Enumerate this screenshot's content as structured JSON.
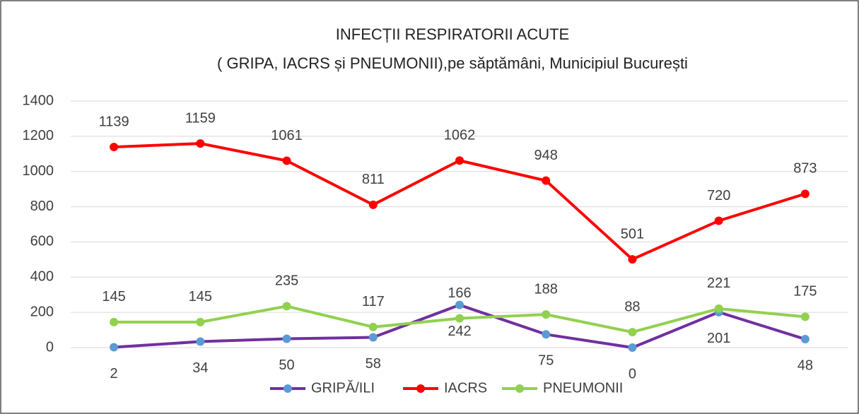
{
  "chart_data": {
    "type": "line",
    "title": "INFECȚII RESPIRATORII ACUTE",
    "subtitle": "( GRIPA, IACRS și PNEUMONII),pe săptămâni, Municipiul București",
    "categories": [
      null,
      null,
      null,
      null,
      null,
      null,
      null,
      null,
      null
    ],
    "series": [
      {
        "name": "GRIPĂ/ILI",
        "color": "#7030a0",
        "marker_color": "#5b9bd5",
        "label_position": "below",
        "values": [
          2,
          34,
          50,
          58,
          242,
          75,
          0,
          201,
          48
        ]
      },
      {
        "name": "IACRS",
        "color": "#ff0000",
        "marker_color": "#ff0000",
        "label_position": "above",
        "values": [
          1139,
          1159,
          1061,
          811,
          1062,
          948,
          501,
          720,
          873
        ]
      },
      {
        "name": "PNEUMONII",
        "color": "#92d050",
        "marker_color": "#92d050",
        "label_position": "above",
        "values": [
          145,
          145,
          235,
          117,
          166,
          188,
          88,
          221,
          175
        ]
      }
    ],
    "ylim": [
      0,
      1400
    ],
    "yticks": [
      0,
      200,
      400,
      600,
      800,
      1000,
      1200,
      1400
    ],
    "grid": true,
    "legend": "bottom",
    "data_labels": true
  }
}
